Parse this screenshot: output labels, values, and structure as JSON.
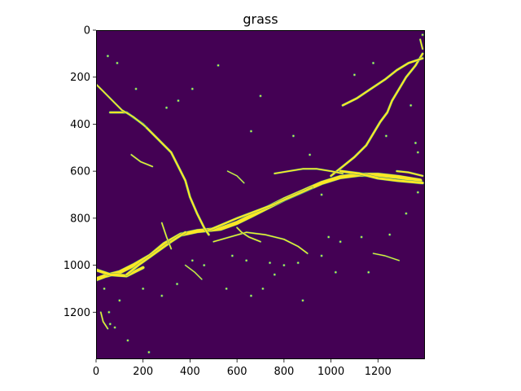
{
  "chart_data": {
    "type": "heatmap",
    "title": "grass",
    "xlabel": "",
    "ylabel": "",
    "xlim": [
      0,
      1400
    ],
    "ylim": [
      1400,
      0
    ],
    "y_axis_inverted": true,
    "x_ticks": [
      0,
      200,
      400,
      600,
      800,
      1000,
      1200
    ],
    "y_ticks": [
      0,
      200,
      400,
      600,
      800,
      1000,
      1200
    ],
    "grid": false,
    "legend": "none",
    "colormap": "viridis",
    "value_range": [
      0,
      1
    ],
    "colors": {
      "background_value_0": "#440154",
      "foreground_value_1": "#fde725",
      "edge": "#21918c"
    },
    "mask_regions_value_1": [
      {
        "path": [
          [
            0,
            1060
          ],
          [
            40,
            1045
          ],
          [
            100,
            1030
          ],
          [
            160,
            1000
          ],
          [
            230,
            960
          ],
          [
            290,
            910
          ],
          [
            360,
            870
          ],
          [
            430,
            855
          ],
          [
            480,
            850
          ],
          [
            530,
            845
          ],
          [
            600,
            820
          ],
          [
            660,
            790
          ],
          [
            720,
            760
          ],
          [
            800,
            720
          ],
          [
            880,
            685
          ],
          [
            960,
            650
          ],
          [
            1040,
            625
          ],
          [
            1120,
            615
          ],
          [
            1200,
            615
          ],
          [
            1290,
            625
          ],
          [
            1380,
            640
          ]
        ],
        "width": 16
      },
      {
        "path": [
          [
            0,
            1020
          ],
          [
            60,
            1040
          ],
          [
            130,
            1045
          ],
          [
            200,
            1010
          ]
        ],
        "width": 12
      },
      {
        "path": [
          [
            470,
            855
          ],
          [
            530,
            830
          ],
          [
            600,
            800
          ],
          [
            680,
            770
          ],
          [
            760,
            740
          ],
          [
            840,
            705
          ],
          [
            920,
            670
          ]
        ],
        "width": 8
      },
      {
        "path": [
          [
            130,
            1040
          ],
          [
            180,
            1000
          ],
          [
            250,
            950
          ],
          [
            320,
            900
          ],
          [
            380,
            860
          ]
        ],
        "width": 9
      },
      {
        "path": [
          [
            60,
            350
          ],
          [
            130,
            350
          ],
          [
            200,
            400
          ],
          [
            260,
            460
          ],
          [
            320,
            520
          ],
          [
            350,
            580
          ],
          [
            380,
            640
          ],
          [
            400,
            710
          ],
          [
            430,
            780
          ],
          [
            460,
            840
          ],
          [
            480,
            870
          ]
        ],
        "width": 8
      },
      {
        "path": [
          [
            0,
            230
          ],
          [
            30,
            260
          ],
          [
            60,
            290
          ],
          [
            110,
            340
          ],
          [
            160,
            370
          ],
          [
            210,
            410
          ]
        ],
        "width": 6
      },
      {
        "path": [
          [
            1000,
            620
          ],
          [
            1050,
            580
          ],
          [
            1100,
            540
          ],
          [
            1150,
            490
          ],
          [
            1180,
            440
          ],
          [
            1210,
            390
          ],
          [
            1240,
            350
          ],
          [
            1260,
            300
          ],
          [
            1290,
            250
          ],
          [
            1320,
            200
          ],
          [
            1360,
            150
          ],
          [
            1390,
            100
          ]
        ],
        "width": 8
      },
      {
        "path": [
          [
            1050,
            320
          ],
          [
            1110,
            290
          ],
          [
            1170,
            250
          ],
          [
            1230,
            210
          ],
          [
            1280,
            170
          ],
          [
            1330,
            140
          ],
          [
            1390,
            120
          ]
        ],
        "width": 8
      },
      {
        "path": [
          [
            760,
            610
          ],
          [
            820,
            600
          ],
          [
            880,
            590
          ],
          [
            940,
            590
          ],
          [
            1000,
            600
          ],
          [
            1050,
            610
          ]
        ],
        "width": 6
      },
      {
        "path": [
          [
            1040,
            600
          ],
          [
            1120,
            610
          ],
          [
            1200,
            630
          ],
          [
            1280,
            640
          ],
          [
            1390,
            650
          ]
        ],
        "width": 10
      },
      {
        "path": [
          [
            1280,
            600
          ],
          [
            1330,
            605
          ],
          [
            1390,
            620
          ]
        ],
        "width": 7
      },
      {
        "path": [
          [
            500,
            900
          ],
          [
            570,
            880
          ],
          [
            640,
            860
          ],
          [
            720,
            870
          ],
          [
            800,
            890
          ],
          [
            860,
            920
          ],
          [
            900,
            950
          ]
        ],
        "width": 5
      },
      {
        "path": [
          [
            280,
            820
          ],
          [
            300,
            880
          ],
          [
            320,
            930
          ]
        ],
        "width": 5
      },
      {
        "path": [
          [
            600,
            840
          ],
          [
            620,
            860
          ],
          [
            650,
            880
          ],
          [
            700,
            900
          ]
        ],
        "width": 5
      },
      {
        "path": [
          [
            1380,
            40
          ],
          [
            1390,
            80
          ]
        ],
        "width": 6
      },
      {
        "path": [
          [
            20,
            1200
          ],
          [
            30,
            1240
          ],
          [
            50,
            1270
          ]
        ],
        "width": 5
      },
      {
        "path": [
          [
            150,
            530
          ],
          [
            190,
            560
          ],
          [
            240,
            580
          ]
        ],
        "width": 5
      },
      {
        "path": [
          [
            380,
            1000
          ],
          [
            420,
            1030
          ],
          [
            450,
            1060
          ]
        ],
        "width": 4
      },
      {
        "path": [
          [
            1180,
            950
          ],
          [
            1230,
            960
          ],
          [
            1290,
            980
          ]
        ],
        "width": 4
      },
      {
        "path": [
          [
            560,
            600
          ],
          [
            600,
            620
          ],
          [
            630,
            650
          ]
        ],
        "width": 4
      }
    ],
    "mask_specks_value_1": [
      [
        60,
        1250
      ],
      [
        80,
        1265
      ],
      [
        135,
        1320
      ],
      [
        225,
        1370
      ],
      [
        345,
        1080
      ],
      [
        410,
        980
      ],
      [
        460,
        1000
      ],
      [
        555,
        1100
      ],
      [
        660,
        1130
      ],
      [
        710,
        1100
      ],
      [
        880,
        1150
      ],
      [
        960,
        960
      ],
      [
        1040,
        900
      ],
      [
        1130,
        880
      ],
      [
        1160,
        1030
      ],
      [
        1250,
        870
      ],
      [
        1320,
        780
      ],
      [
        1370,
        690
      ],
      [
        990,
        880
      ],
      [
        740,
        990
      ],
      [
        800,
        1000
      ],
      [
        280,
        1130
      ],
      [
        200,
        1100
      ],
      [
        100,
        1150
      ],
      [
        35,
        1100
      ],
      [
        55,
        1200
      ],
      [
        300,
        330
      ],
      [
        350,
        300
      ],
      [
        410,
        250
      ],
      [
        660,
        430
      ],
      [
        840,
        450
      ],
      [
        910,
        530
      ],
      [
        1100,
        190
      ],
      [
        1180,
        140
      ],
      [
        1235,
        450
      ],
      [
        1340,
        320
      ],
      [
        1370,
        520
      ],
      [
        520,
        150
      ],
      [
        700,
        280
      ],
      [
        50,
        110
      ],
      [
        90,
        140
      ],
      [
        170,
        250
      ],
      [
        1390,
        20
      ],
      [
        1360,
        480
      ],
      [
        960,
        700
      ],
      [
        580,
        960
      ],
      [
        640,
        980
      ],
      [
        760,
        1040
      ],
      [
        860,
        990
      ],
      [
        1020,
        1030
      ]
    ]
  }
}
